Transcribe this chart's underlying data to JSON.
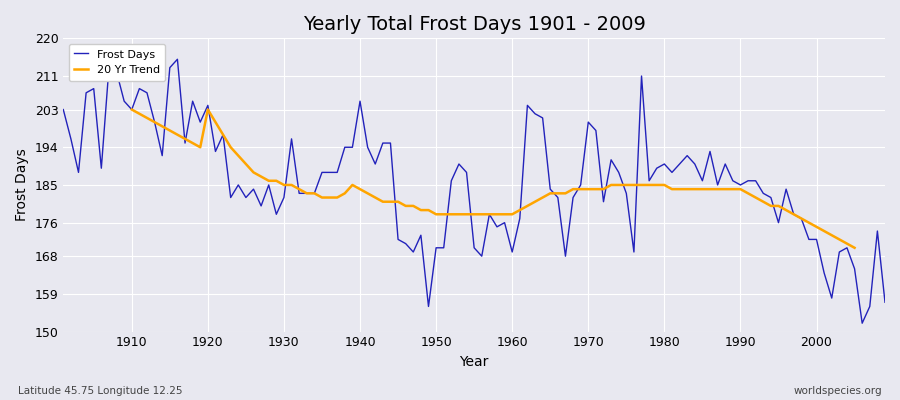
{
  "title": "Yearly Total Frost Days 1901 - 2009",
  "xlabel": "Year",
  "ylabel": "Frost Days",
  "footnote_left": "Latitude 45.75 Longitude 12.25",
  "footnote_right": "worldspecies.org",
  "ylim": [
    150,
    220
  ],
  "yticks": [
    150,
    159,
    168,
    176,
    185,
    194,
    203,
    211,
    220
  ],
  "line_color": "#2222bb",
  "trend_color": "#ffa500",
  "bg_color": "#e8e8f0",
  "legend_labels": [
    "Frost Days",
    "20 Yr Trend"
  ],
  "years": [
    1901,
    1902,
    1903,
    1904,
    1905,
    1906,
    1907,
    1908,
    1909,
    1910,
    1911,
    1912,
    1913,
    1914,
    1915,
    1916,
    1917,
    1918,
    1919,
    1920,
    1921,
    1922,
    1923,
    1924,
    1925,
    1926,
    1927,
    1928,
    1929,
    1930,
    1931,
    1932,
    1933,
    1934,
    1935,
    1936,
    1937,
    1938,
    1939,
    1940,
    1941,
    1942,
    1943,
    1944,
    1945,
    1946,
    1947,
    1948,
    1949,
    1950,
    1951,
    1952,
    1953,
    1954,
    1955,
    1956,
    1957,
    1958,
    1959,
    1960,
    1961,
    1962,
    1963,
    1964,
    1965,
    1966,
    1967,
    1968,
    1969,
    1970,
    1971,
    1972,
    1973,
    1974,
    1975,
    1976,
    1977,
    1978,
    1979,
    1980,
    1981,
    1982,
    1983,
    1984,
    1985,
    1986,
    1987,
    1988,
    1989,
    1990,
    1991,
    1992,
    1993,
    1994,
    1995,
    1996,
    1997,
    1998,
    1999,
    2000,
    2001,
    2002,
    2003,
    2004,
    2005,
    2006,
    2007,
    2008,
    2009
  ],
  "frost_days": [
    203,
    196,
    188,
    207,
    208,
    189,
    213,
    212,
    205,
    203,
    208,
    207,
    200,
    192,
    213,
    215,
    195,
    205,
    200,
    204,
    193,
    197,
    182,
    185,
    182,
    184,
    180,
    185,
    178,
    182,
    196,
    183,
    183,
    183,
    188,
    188,
    188,
    194,
    194,
    205,
    194,
    190,
    195,
    195,
    172,
    171,
    169,
    173,
    156,
    170,
    170,
    186,
    190,
    188,
    170,
    168,
    178,
    175,
    176,
    169,
    177,
    204,
    202,
    201,
    184,
    182,
    168,
    182,
    185,
    200,
    198,
    181,
    191,
    188,
    183,
    169,
    211,
    186,
    189,
    190,
    188,
    190,
    192,
    190,
    186,
    193,
    185,
    190,
    186,
    185,
    186,
    186,
    183,
    182,
    176,
    184,
    178,
    177,
    172,
    172,
    164,
    158,
    169,
    170,
    165,
    152,
    156,
    174,
    157
  ],
  "trend_years": [
    1910,
    1911,
    1912,
    1913,
    1914,
    1915,
    1916,
    1917,
    1918,
    1919,
    1920,
    1921,
    1922,
    1923,
    1924,
    1925,
    1926,
    1927,
    1928,
    1929,
    1930,
    1931,
    1932,
    1933,
    1934,
    1935,
    1936,
    1937,
    1938,
    1939,
    1940,
    1941,
    1942,
    1943,
    1944,
    1945,
    1946,
    1947,
    1948,
    1949,
    1950,
    1951,
    1952,
    1953,
    1954,
    1955,
    1956,
    1957,
    1958,
    1959,
    1960,
    1961,
    1962,
    1963,
    1964,
    1965,
    1966,
    1967,
    1968,
    1969,
    1970,
    1971,
    1972,
    1973,
    1974,
    1975,
    1976,
    1977,
    1978,
    1979,
    1980,
    1981,
    1982,
    1983,
    1984,
    1985,
    1986,
    1987,
    1988,
    1989,
    1990,
    1991,
    1992,
    1993,
    1994,
    1995,
    1996,
    1997,
    1998,
    1999,
    2000,
    2001,
    2002,
    2003,
    2004,
    2005
  ],
  "trend_values": [
    203,
    202,
    201,
    200,
    199,
    198,
    197,
    196,
    195,
    194,
    203,
    200,
    197,
    194,
    192,
    190,
    188,
    187,
    186,
    186,
    185,
    185,
    184,
    183,
    183,
    182,
    182,
    182,
    183,
    185,
    184,
    183,
    182,
    181,
    181,
    181,
    180,
    180,
    179,
    179,
    178,
    178,
    178,
    178,
    178,
    178,
    178,
    178,
    178,
    178,
    178,
    179,
    180,
    181,
    182,
    183,
    183,
    183,
    184,
    184,
    184,
    184,
    184,
    185,
    185,
    185,
    185,
    185,
    185,
    185,
    185,
    184,
    184,
    184,
    184,
    184,
    184,
    184,
    184,
    184,
    184,
    183,
    182,
    181,
    180,
    180,
    179,
    178,
    177,
    176,
    175,
    174,
    173,
    172,
    171,
    170
  ]
}
